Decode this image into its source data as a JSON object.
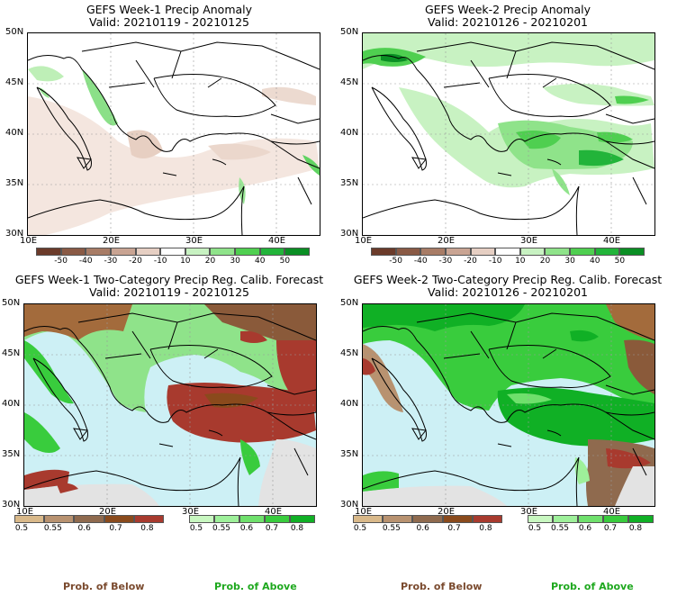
{
  "panels": [
    {
      "title": "GEFS Week-1 Precip Anomaly",
      "valid": "Valid: 20210119 - 20210125"
    },
    {
      "title": "GEFS Week-2 Precip Anomaly",
      "valid": "Valid: 20210126 - 20210201"
    },
    {
      "title": "GEFS Week-1 Two-Category Precip Reg. Calib. Forecast",
      "valid": "Valid: 20210119 - 20210125"
    },
    {
      "title": "GEFS Week-2 Two-Category Precip Reg. Calib. Forecast",
      "valid": "Valid: 20210126 - 20210201"
    }
  ],
  "lat_ticks": [
    "50N",
    "45N",
    "40N",
    "35N",
    "30N"
  ],
  "lon_ticks": [
    "10E",
    "20E",
    "30E",
    "40E"
  ],
  "anomaly_colorbar": {
    "labels": [
      "-50",
      "-40",
      "-30",
      "-20",
      "-10",
      "10",
      "20",
      "30",
      "40",
      "50"
    ],
    "colors": [
      "#6b3b2a",
      "#8a5a45",
      "#a87c66",
      "#c9a493",
      "#e6cfc3",
      "#ffffff",
      "#c8f2c2",
      "#8fe38a",
      "#4fcf50",
      "#22b43a",
      "#0a8f24"
    ]
  },
  "below_colorbar": {
    "labels": [
      "0.5",
      "0.55",
      "0.6",
      "0.7",
      "0.8"
    ],
    "colors": [
      "#d9b98a",
      "#b89270",
      "#8f6a4e",
      "#8a4a1c",
      "#a83a2e"
    ]
  },
  "above_colorbar": {
    "labels": [
      "0.5",
      "0.55",
      "0.6",
      "0.7",
      "0.8"
    ],
    "colors": [
      "#c8f7c0",
      "#9ef09a",
      "#6fe06c",
      "#39cc3d",
      "#10b025"
    ]
  },
  "legend": {
    "below": "Prob. of Below",
    "above": "Prob. of Above",
    "below_color": "#7a4a2e",
    "above_color": "#1ea81e"
  },
  "colors": {
    "sea": "#cdf0f5",
    "land_gray": "#e3e3e3",
    "boundary": "#000000"
  }
}
